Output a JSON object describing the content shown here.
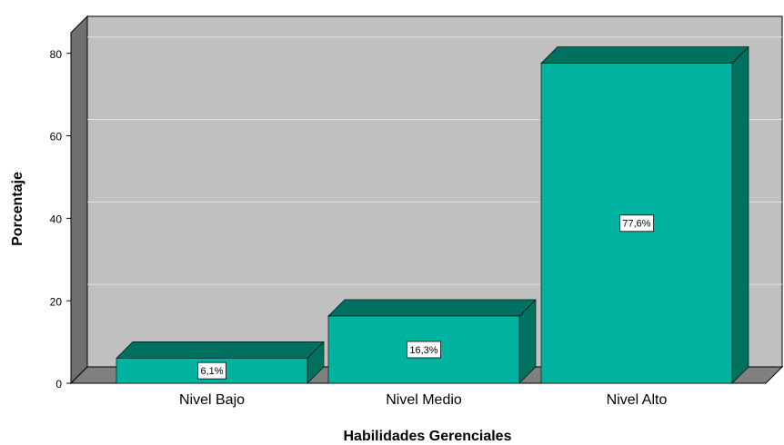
{
  "chart_data": {
    "type": "bar3d",
    "x_label": "Habilidades Gerenciales",
    "y_label": "Porcentaje",
    "categories": [
      "Nivel Bajo",
      "Nivel Medio",
      "Nivel Alto"
    ],
    "values": [
      6.1,
      16.3,
      77.6
    ],
    "value_labels": [
      "6,1%",
      "16,3%",
      "77,6%"
    ],
    "color": "#00b2a0",
    "ylim": [
      0,
      85
    ],
    "yticks": [
      0,
      20,
      40,
      60,
      80
    ],
    "grid": true
  }
}
